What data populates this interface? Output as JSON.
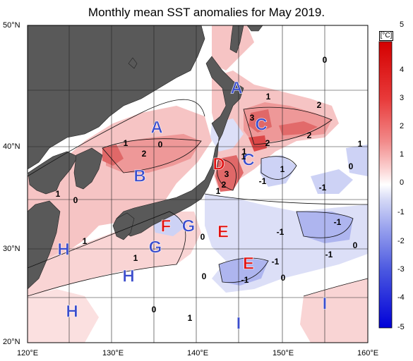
{
  "title": "Monthly mean SST anomalies for May 2019.",
  "axes": {
    "lat_labels": [
      "50°N",
      "40°N",
      "30°N",
      "20°N"
    ],
    "lon_labels": [
      "120°E",
      "130°E",
      "140°E",
      "150°E",
      "160°E"
    ]
  },
  "colorbar": {
    "unit": "[°C]",
    "ticks": [
      "5",
      "4",
      "3",
      "2",
      "1",
      "0",
      "-1",
      "-2",
      "-3",
      "-4",
      "-5"
    ]
  },
  "region_labels": [
    {
      "text": "A",
      "color": "#3a4ccc"
    },
    {
      "text": "A",
      "color": "#3a4ccc"
    },
    {
      "text": "B",
      "color": "#3a4ccc"
    },
    {
      "text": "C",
      "color": "#3a4ccc"
    },
    {
      "text": "C",
      "color": "#3a4ccc"
    },
    {
      "text": "D",
      "color": "#e01010"
    },
    {
      "text": "E",
      "color": "#e01010"
    },
    {
      "text": "E",
      "color": "#e01010"
    },
    {
      "text": "F",
      "color": "#e01010"
    },
    {
      "text": "G",
      "color": "#3a4ccc"
    },
    {
      "text": "G",
      "color": "#3a4ccc"
    },
    {
      "text": "H",
      "color": "#3a4ccc"
    },
    {
      "text": "H",
      "color": "#3a4ccc"
    },
    {
      "text": "H",
      "color": "#3a4ccc"
    },
    {
      "text": "I",
      "color": "#3a4ccc"
    },
    {
      "text": "I",
      "color": "#3a4ccc"
    }
  ],
  "contour_labels": [
    "0",
    "1",
    "3",
    "2",
    "2",
    "1",
    "2",
    "1",
    "0",
    "3",
    "2",
    "1",
    "1",
    "-1",
    "-1",
    "0",
    "1",
    "-1",
    "0",
    "1",
    "1",
    "-1",
    "0",
    "-1",
    "-1",
    "-1",
    "0",
    "0",
    "2",
    "1",
    "0",
    "1",
    "0",
    "1"
  ]
}
